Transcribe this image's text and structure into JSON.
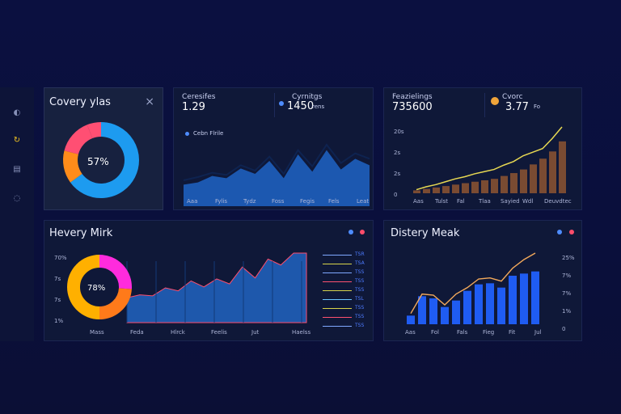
{
  "sidebar": {
    "items": [
      {
        "icon": "circle-c-icon",
        "glyph": "◐"
      },
      {
        "icon": "refresh-icon",
        "glyph": "↻"
      },
      {
        "icon": "document-icon",
        "glyph": "▤"
      },
      {
        "icon": "settings-icon",
        "glyph": "◌"
      }
    ]
  },
  "panel1": {
    "title": "Covery ylas",
    "close": "×",
    "donut_label": "57%",
    "donut_slices": [
      {
        "value": 65,
        "color": "#1d9bf0"
      },
      {
        "value": 14,
        "color": "#ff8c1a"
      },
      {
        "value": 15,
        "color": "#ff4f73"
      },
      {
        "value": 6,
        "color": "#ff4f73"
      }
    ]
  },
  "panel2": {
    "stat1_label": "Ceresifes",
    "stat1_value": "1.29",
    "stat2_label": "Cyrnitgs",
    "stat2_value": "1450",
    "stat2_suffix": "rens",
    "legend": "Cebn Flrile",
    "x_labels": [
      "Aaa",
      "Fylis",
      "Tydz",
      "Foss",
      "Fegis",
      "Fels",
      "Leat"
    ],
    "area_values": [
      20,
      22,
      28,
      26,
      35,
      30,
      42,
      26,
      48,
      32,
      52,
      34,
      44,
      38
    ],
    "line_values": [
      24,
      27,
      31,
      29,
      38,
      33,
      46,
      30,
      52,
      37,
      57,
      40,
      49,
      44
    ]
  },
  "panel3": {
    "stat1_label": "Feazielings",
    "stat1_value": "735600",
    "stat2_label": "Cvorc",
    "stat2_value": "3.77",
    "stat2_suffix": "Fo",
    "y_labels": [
      "20s",
      "2s",
      "2s",
      "0"
    ],
    "x_labels": [
      "Aas",
      "Tulst",
      "Fal",
      "Tlaa",
      "Sayied",
      "Wdl",
      "Deuvdtec"
    ],
    "bar_values": [
      4,
      6,
      8,
      10,
      12,
      14,
      16,
      18,
      20,
      24,
      28,
      33,
      40,
      48,
      58,
      72
    ],
    "line_values": [
      5,
      9,
      12,
      16,
      20,
      23,
      27,
      30,
      33,
      39,
      44,
      52,
      57,
      62,
      76,
      92
    ]
  },
  "panel4": {
    "title": "Hevery Mirk",
    "y_labels": [
      "70%",
      "7s",
      "7s",
      "1%"
    ],
    "donut_label": "78%",
    "x_labels": [
      "Mass",
      "Feda",
      "Hlrck",
      "Feelis",
      "Jut",
      "Haelss"
    ],
    "area_values": [
      25,
      28,
      27,
      35,
      32,
      42,
      36,
      44,
      39,
      56,
      45,
      64,
      58,
      70,
      70
    ],
    "legend_colors": [
      "#7fa8ff",
      "#d8d44b",
      "#7fa8ff",
      "#ff5270",
      "#d8d44b",
      "#6bc5ff",
      "#d8d44b",
      "#ff5270",
      "#7fa8ff"
    ],
    "legend_labels": [
      "TSR",
      "TSA",
      "TSS",
      "TSS",
      "TSS",
      "TSL",
      "TSS",
      "TSS",
      "TSS"
    ],
    "donut_slices": [
      {
        "value": 26,
        "color": "#ff2bdd"
      },
      {
        "value": 24,
        "color": "#ff7a1a"
      },
      {
        "value": 50,
        "color": "#ffb000"
      }
    ]
  },
  "panel5": {
    "title": "Distery Meak",
    "y_labels": [
      "25%",
      "7%",
      "7%",
      "1%",
      "0"
    ],
    "x_labels": [
      "Aas",
      "Fol",
      "Fals",
      "Fieg",
      "Fit",
      "Jul"
    ],
    "bar_values": [
      8,
      26,
      24,
      16,
      22,
      31,
      37,
      38,
      34,
      45,
      47,
      49
    ],
    "line_values": [
      10,
      28,
      27,
      18,
      28,
      34,
      42,
      43,
      40,
      52,
      60,
      66
    ]
  }
}
